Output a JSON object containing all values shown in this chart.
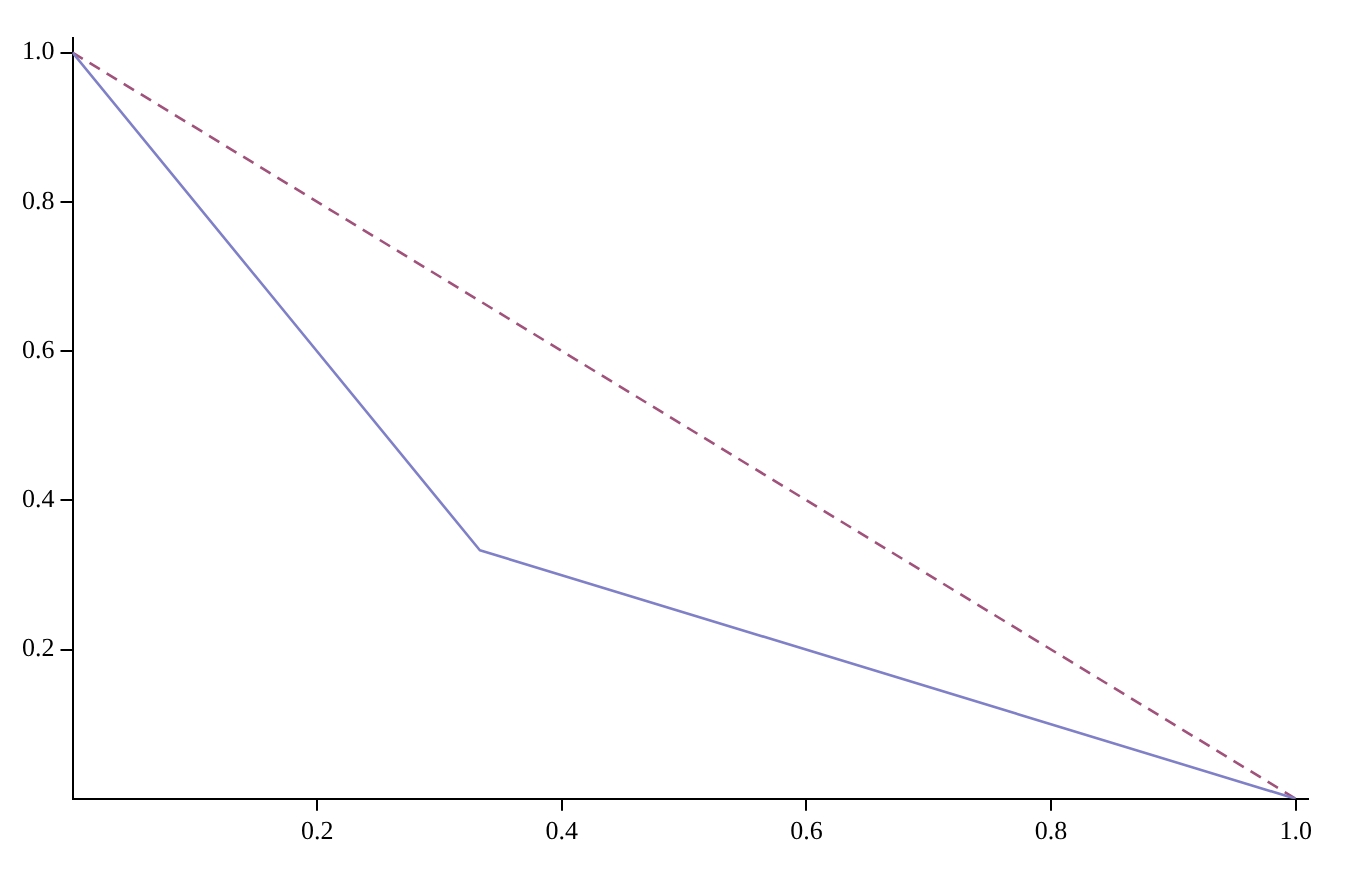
{
  "chart_data": {
    "type": "line",
    "xlim": [
      0,
      1.01
    ],
    "ylim": [
      0,
      1.02
    ],
    "xticks": [
      0.2,
      0.4,
      0.6,
      0.8,
      {
        "value": 1,
        "label": "1.0"
      }
    ],
    "yticks": [
      0.2,
      0.4,
      0.6,
      0.8,
      {
        "value": 1,
        "label": "1.0"
      }
    ],
    "grid": false,
    "marker": "none",
    "series": [
      {
        "x": [
          0,
          0.333,
          1
        ],
        "values": [
          1,
          0.333,
          0
        ],
        "color": "#8080c8",
        "line_style": "solid"
      },
      {
        "x": [
          0,
          1
        ],
        "values": [
          1,
          0
        ],
        "color": "#a0527a",
        "line_style": "dashed"
      }
    ]
  }
}
